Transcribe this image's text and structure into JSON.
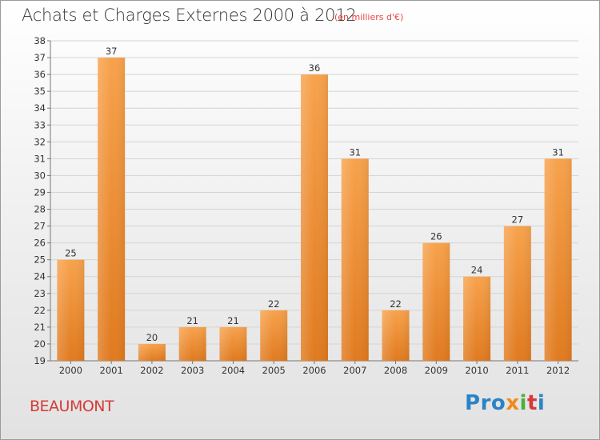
{
  "header": {
    "title": "Achats et Charges Externes 2000 à 2012",
    "unit": "(en milliers d'€)"
  },
  "footer": {
    "commune": "BEAUMONT",
    "logo_letters": [
      "P",
      "r",
      "o",
      "x",
      "i",
      "t",
      "i"
    ]
  },
  "colors": {
    "bar_top": "#f7a24c",
    "bar_bottom": "#e07a1f",
    "title": "#333333",
    "unit": "#e8473e",
    "commune": "#d63b37",
    "logo": [
      "#2b83c6",
      "#2b83c6",
      "#2b83c6",
      "#f08a1d",
      "#4caf3c",
      "#d63b37",
      "#2b83c6"
    ]
  },
  "chart_data": {
    "type": "bar",
    "categories": [
      "2000",
      "2001",
      "2002",
      "2003",
      "2004",
      "2005",
      "2006",
      "2007",
      "2008",
      "2009",
      "2010",
      "2011",
      "2012"
    ],
    "values": [
      25,
      37,
      20,
      21,
      21,
      22,
      36,
      31,
      22,
      26,
      24,
      27,
      31
    ],
    "ylim": [
      19,
      38
    ],
    "yticks": [
      19,
      20,
      21,
      22,
      23,
      24,
      25,
      26,
      27,
      28,
      29,
      30,
      31,
      32,
      33,
      34,
      35,
      36,
      37,
      38
    ],
    "grid": true,
    "legend": "none"
  }
}
